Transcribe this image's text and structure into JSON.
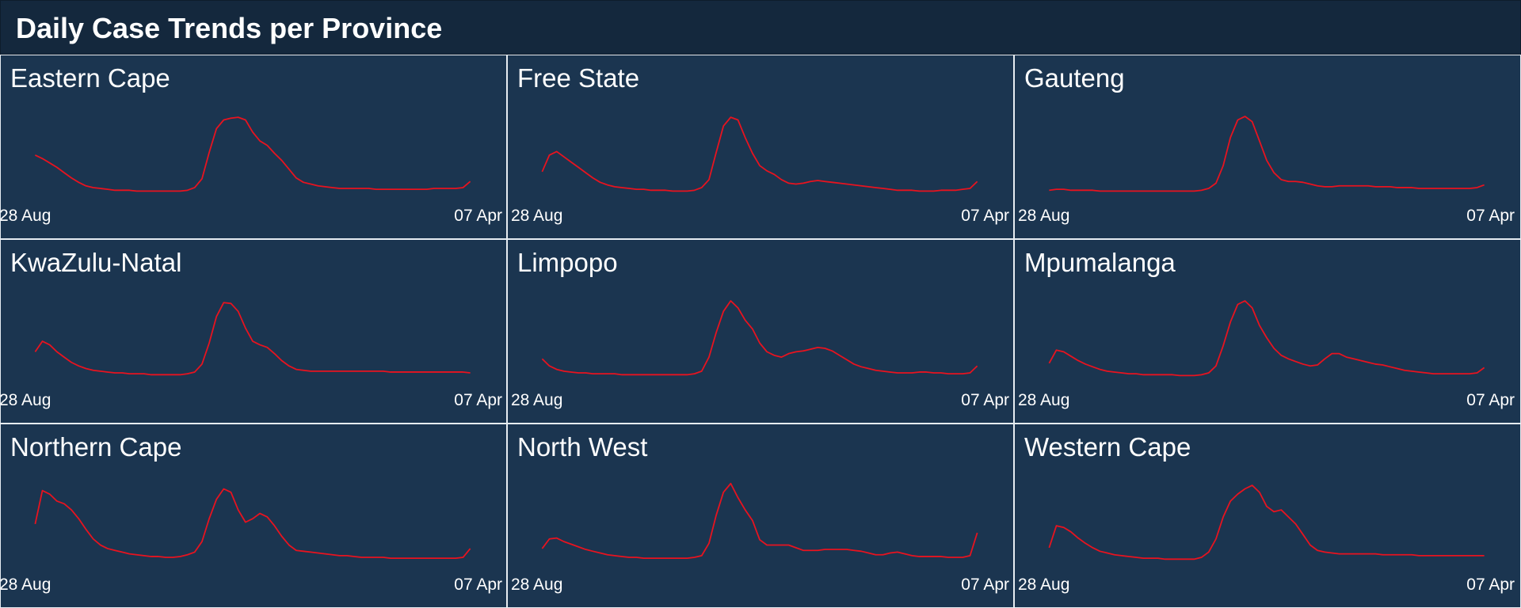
{
  "title": "Daily Case Trends per Province",
  "colors": {
    "header_bg": "#14283d",
    "panel_bg": "#1b3550",
    "panel_border": "#e6ecf2",
    "line": "#e8131f",
    "text": "#ffffff"
  },
  "chart_data": [
    {
      "type": "line",
      "title": "Eastern Cape",
      "x_start": "28 Aug",
      "x_end": "07 Apr",
      "values": [
        0.42,
        0.38,
        0.33,
        0.28,
        0.22,
        0.16,
        0.11,
        0.07,
        0.05,
        0.04,
        0.03,
        0.02,
        0.02,
        0.02,
        0.01,
        0.01,
        0.01,
        0.01,
        0.01,
        0.01,
        0.01,
        0.02,
        0.05,
        0.15,
        0.45,
        0.72,
        0.82,
        0.84,
        0.85,
        0.82,
        0.68,
        0.58,
        0.53,
        0.44,
        0.36,
        0.26,
        0.16,
        0.11,
        0.09,
        0.07,
        0.06,
        0.05,
        0.04,
        0.04,
        0.04,
        0.04,
        0.04,
        0.03,
        0.03,
        0.03,
        0.03,
        0.03,
        0.03,
        0.03,
        0.03,
        0.04,
        0.04,
        0.04,
        0.04,
        0.05,
        0.12
      ]
    },
    {
      "type": "line",
      "title": "Free State",
      "x_start": "28 Aug",
      "x_end": "07 Apr",
      "values": [
        0.23,
        0.42,
        0.46,
        0.4,
        0.34,
        0.28,
        0.22,
        0.16,
        0.11,
        0.08,
        0.06,
        0.05,
        0.04,
        0.03,
        0.03,
        0.02,
        0.02,
        0.02,
        0.01,
        0.01,
        0.01,
        0.02,
        0.05,
        0.14,
        0.45,
        0.75,
        0.85,
        0.82,
        0.62,
        0.44,
        0.3,
        0.24,
        0.2,
        0.14,
        0.1,
        0.09,
        0.1,
        0.12,
        0.13,
        0.12,
        0.11,
        0.1,
        0.09,
        0.08,
        0.07,
        0.06,
        0.05,
        0.04,
        0.03,
        0.02,
        0.02,
        0.02,
        0.01,
        0.01,
        0.01,
        0.02,
        0.02,
        0.02,
        0.03,
        0.04,
        0.12
      ]
    },
    {
      "type": "line",
      "title": "Gauteng",
      "x_start": "28 Aug",
      "x_end": "07 Apr",
      "values": [
        0.02,
        0.03,
        0.03,
        0.02,
        0.02,
        0.02,
        0.02,
        0.01,
        0.01,
        0.01,
        0.01,
        0.01,
        0.01,
        0.01,
        0.01,
        0.01,
        0.01,
        0.01,
        0.01,
        0.01,
        0.01,
        0.02,
        0.04,
        0.1,
        0.3,
        0.62,
        0.82,
        0.86,
        0.8,
        0.58,
        0.36,
        0.22,
        0.14,
        0.12,
        0.12,
        0.11,
        0.09,
        0.07,
        0.06,
        0.06,
        0.07,
        0.07,
        0.07,
        0.07,
        0.07,
        0.06,
        0.06,
        0.06,
        0.05,
        0.05,
        0.05,
        0.04,
        0.04,
        0.04,
        0.04,
        0.04,
        0.04,
        0.04,
        0.04,
        0.05,
        0.08
      ]
    },
    {
      "type": "line",
      "title": "KwaZulu-Natal",
      "x_start": "28 Aug",
      "x_end": "07 Apr",
      "values": [
        0.28,
        0.4,
        0.36,
        0.28,
        0.22,
        0.16,
        0.12,
        0.09,
        0.07,
        0.06,
        0.05,
        0.04,
        0.04,
        0.03,
        0.03,
        0.03,
        0.02,
        0.02,
        0.02,
        0.02,
        0.02,
        0.03,
        0.05,
        0.14,
        0.38,
        0.68,
        0.84,
        0.83,
        0.74,
        0.55,
        0.4,
        0.36,
        0.33,
        0.26,
        0.18,
        0.12,
        0.08,
        0.07,
        0.06,
        0.06,
        0.06,
        0.06,
        0.06,
        0.06,
        0.06,
        0.06,
        0.06,
        0.06,
        0.06,
        0.05,
        0.05,
        0.05,
        0.05,
        0.05,
        0.05,
        0.05,
        0.05,
        0.05,
        0.05,
        0.05,
        0.04
      ]
    },
    {
      "type": "line",
      "title": "Limpopo",
      "x_start": "28 Aug",
      "x_end": "07 Apr",
      "values": [
        0.2,
        0.12,
        0.08,
        0.06,
        0.05,
        0.04,
        0.04,
        0.03,
        0.03,
        0.03,
        0.03,
        0.02,
        0.02,
        0.02,
        0.02,
        0.02,
        0.02,
        0.02,
        0.02,
        0.02,
        0.02,
        0.03,
        0.06,
        0.22,
        0.5,
        0.74,
        0.86,
        0.78,
        0.64,
        0.54,
        0.38,
        0.28,
        0.24,
        0.22,
        0.26,
        0.28,
        0.29,
        0.31,
        0.33,
        0.32,
        0.29,
        0.24,
        0.19,
        0.14,
        0.11,
        0.09,
        0.07,
        0.06,
        0.05,
        0.04,
        0.04,
        0.04,
        0.05,
        0.05,
        0.04,
        0.04,
        0.03,
        0.03,
        0.03,
        0.04,
        0.12
      ]
    },
    {
      "type": "line",
      "title": "Mpumalanga",
      "x_start": "28 Aug",
      "x_end": "07 Apr",
      "values": [
        0.15,
        0.3,
        0.28,
        0.23,
        0.18,
        0.14,
        0.11,
        0.08,
        0.06,
        0.05,
        0.04,
        0.03,
        0.03,
        0.02,
        0.02,
        0.02,
        0.02,
        0.02,
        0.01,
        0.01,
        0.01,
        0.02,
        0.04,
        0.12,
        0.35,
        0.62,
        0.82,
        0.86,
        0.78,
        0.58,
        0.44,
        0.32,
        0.24,
        0.2,
        0.17,
        0.14,
        0.12,
        0.13,
        0.2,
        0.26,
        0.26,
        0.22,
        0.2,
        0.18,
        0.16,
        0.14,
        0.13,
        0.11,
        0.09,
        0.07,
        0.06,
        0.05,
        0.04,
        0.03,
        0.03,
        0.03,
        0.03,
        0.03,
        0.03,
        0.04,
        0.1
      ]
    },
    {
      "type": "line",
      "title": "Northern Cape",
      "x_start": "28 Aug",
      "x_end": "07 Apr",
      "values": [
        0.42,
        0.8,
        0.76,
        0.68,
        0.65,
        0.58,
        0.48,
        0.36,
        0.25,
        0.18,
        0.14,
        0.12,
        0.1,
        0.08,
        0.07,
        0.06,
        0.05,
        0.05,
        0.04,
        0.04,
        0.05,
        0.07,
        0.1,
        0.22,
        0.48,
        0.7,
        0.82,
        0.78,
        0.58,
        0.44,
        0.48,
        0.54,
        0.5,
        0.4,
        0.28,
        0.18,
        0.12,
        0.11,
        0.1,
        0.09,
        0.08,
        0.07,
        0.06,
        0.06,
        0.05,
        0.04,
        0.04,
        0.04,
        0.04,
        0.03,
        0.03,
        0.03,
        0.03,
        0.03,
        0.03,
        0.03,
        0.03,
        0.03,
        0.03,
        0.04,
        0.14
      ]
    },
    {
      "type": "line",
      "title": "North West",
      "x_start": "28 Aug",
      "x_end": "07 Apr",
      "values": [
        0.14,
        0.25,
        0.26,
        0.22,
        0.19,
        0.16,
        0.13,
        0.11,
        0.09,
        0.07,
        0.06,
        0.05,
        0.04,
        0.04,
        0.03,
        0.03,
        0.03,
        0.03,
        0.03,
        0.03,
        0.03,
        0.04,
        0.06,
        0.2,
        0.52,
        0.78,
        0.88,
        0.72,
        0.58,
        0.46,
        0.24,
        0.18,
        0.18,
        0.18,
        0.18,
        0.15,
        0.12,
        0.12,
        0.12,
        0.13,
        0.13,
        0.13,
        0.13,
        0.12,
        0.11,
        0.09,
        0.07,
        0.07,
        0.09,
        0.1,
        0.08,
        0.06,
        0.05,
        0.05,
        0.05,
        0.05,
        0.04,
        0.04,
        0.04,
        0.06,
        0.32
      ]
    },
    {
      "type": "line",
      "title": "Western Cape",
      "x_start": "28 Aug",
      "x_end": "07 Apr",
      "values": [
        0.15,
        0.4,
        0.38,
        0.33,
        0.26,
        0.2,
        0.15,
        0.11,
        0.09,
        0.07,
        0.06,
        0.05,
        0.04,
        0.03,
        0.03,
        0.03,
        0.02,
        0.02,
        0.02,
        0.02,
        0.02,
        0.04,
        0.1,
        0.25,
        0.5,
        0.68,
        0.76,
        0.82,
        0.86,
        0.78,
        0.62,
        0.56,
        0.58,
        0.5,
        0.42,
        0.3,
        0.18,
        0.12,
        0.1,
        0.09,
        0.08,
        0.08,
        0.08,
        0.08,
        0.08,
        0.08,
        0.07,
        0.07,
        0.07,
        0.07,
        0.07,
        0.06,
        0.06,
        0.06,
        0.06,
        0.06,
        0.06,
        0.06,
        0.06,
        0.06,
        0.06
      ]
    }
  ]
}
